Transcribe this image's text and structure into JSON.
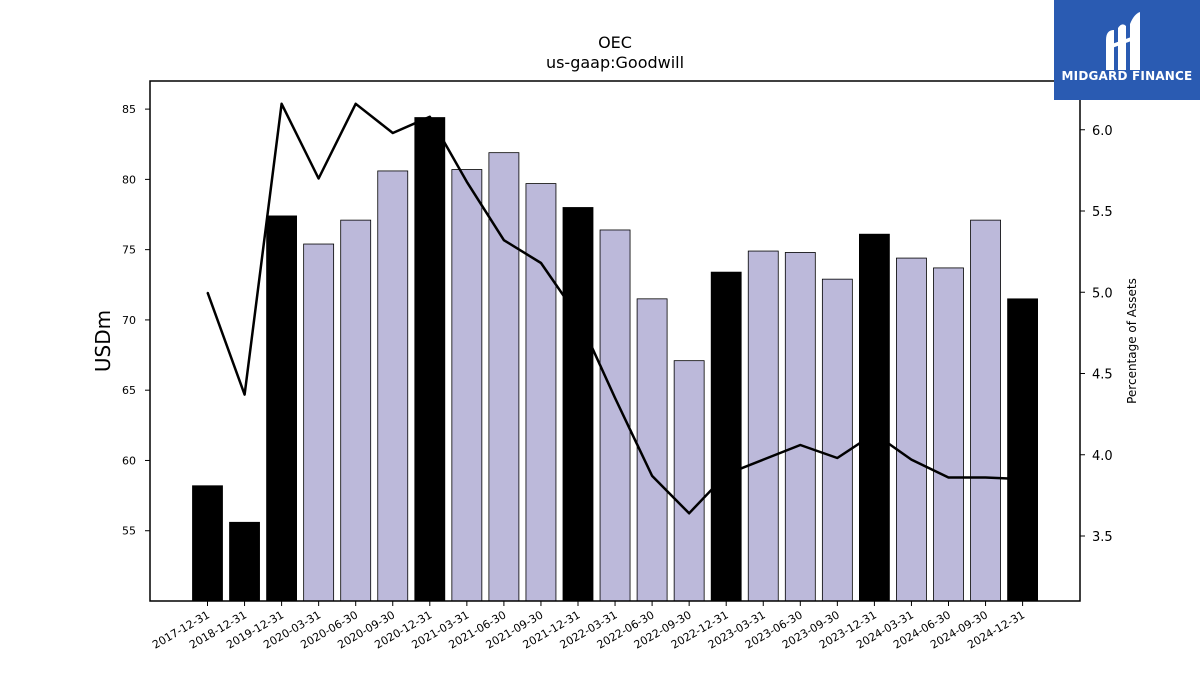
{
  "brand": {
    "name": "MIDGARD FINANCE",
    "bg_color": "#2a5bb2",
    "icon": "midgard-logo-icon"
  },
  "chart_data": {
    "type": "bar",
    "title": "OEC",
    "subtitle": "us-gaap:Goodwill",
    "ylabel": "USDm",
    "y2label": "Percentage of Assets",
    "ylim": [
      50,
      87
    ],
    "y2lim": [
      3.1,
      6.3
    ],
    "yticks": [
      55,
      60,
      65,
      70,
      75,
      80,
      85
    ],
    "y2ticks": [
      "3.5",
      "4.0",
      "4.5",
      "5.0",
      "5.5",
      "6.0"
    ],
    "categories": [
      "2017-12-31",
      "2018-12-31",
      "2019-12-31",
      "2020-03-31",
      "2020-06-30",
      "2020-09-30",
      "2020-12-31",
      "2021-03-31",
      "2021-06-30",
      "2021-09-30",
      "2021-12-31",
      "2022-03-31",
      "2022-06-30",
      "2022-09-30",
      "2022-12-31",
      "2023-03-31",
      "2023-06-30",
      "2023-09-30",
      "2023-12-31",
      "2024-03-31",
      "2024-06-30",
      "2024-09-30",
      "2024-12-31"
    ],
    "series": [
      {
        "type": "bar",
        "values": [
          58.2,
          55.6,
          77.4,
          75.4,
          77.1,
          80.6,
          84.4,
          80.7,
          81.9,
          79.7,
          78.0,
          76.4,
          71.5,
          67.1,
          73.4,
          74.9,
          74.8,
          72.9,
          76.1,
          74.4,
          73.7,
          77.1,
          71.5
        ],
        "annual_color": "#000000",
        "quarterly_color": "#bcb9da",
        "annual_flags": [
          true,
          true,
          true,
          false,
          false,
          false,
          true,
          false,
          false,
          false,
          true,
          false,
          false,
          false,
          true,
          false,
          false,
          false,
          true,
          false,
          false,
          false,
          true
        ]
      },
      {
        "type": "line",
        "axis": "y2",
        "color": "#000000",
        "values": [
          5.0,
          4.37,
          6.16,
          5.7,
          6.16,
          5.98,
          6.08,
          5.68,
          5.32,
          5.18,
          4.85,
          4.35,
          3.87,
          3.64,
          3.88,
          3.97,
          4.06,
          3.98,
          4.13,
          3.97,
          3.86,
          3.86,
          3.85
        ]
      }
    ],
    "grid": false,
    "legend": "none"
  }
}
